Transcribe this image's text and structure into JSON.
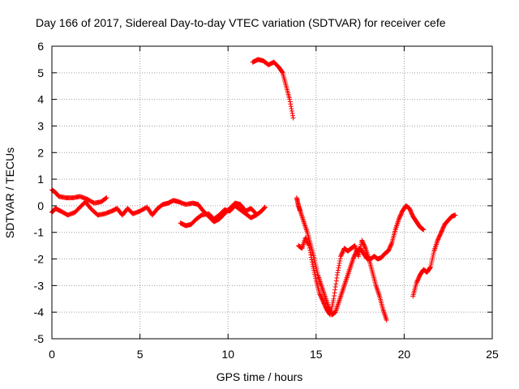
{
  "chart_data": {
    "type": "scatter",
    "title": "Day 166 of 2017, Sidereal Day-to-day VTEC variation (SDTVAR) for receiver cefe",
    "xlabel": "GPS time / hours",
    "ylabel": "SDTVAR / TECUs",
    "xlim": [
      0,
      25
    ],
    "ylim": [
      -5,
      6
    ],
    "xticks": [
      "0",
      "5",
      "10",
      "15",
      "20",
      "25"
    ],
    "yticks": [
      "-5",
      "-4",
      "-3",
      "-2",
      "-1",
      "0",
      "1",
      "2",
      "3",
      "4",
      "5",
      "6"
    ],
    "grid": true,
    "marker": "+",
    "color": "#ff0000",
    "segments": [
      [
        [
          0.0,
          0.6
        ],
        [
          0.2,
          0.5
        ],
        [
          0.4,
          0.35
        ],
        [
          0.8,
          0.3
        ],
        [
          1.2,
          0.3
        ],
        [
          1.6,
          0.35
        ],
        [
          2.0,
          0.25
        ],
        [
          2.4,
          0.1
        ],
        [
          2.8,
          0.15
        ],
        [
          3.1,
          0.3
        ]
      ],
      [
        [
          0.0,
          -0.25
        ],
        [
          0.2,
          -0.1
        ],
        [
          0.5,
          -0.2
        ],
        [
          0.9,
          -0.35
        ],
        [
          1.3,
          -0.25
        ],
        [
          1.6,
          -0.05
        ],
        [
          1.9,
          0.15
        ],
        [
          2.2,
          -0.1
        ],
        [
          2.6,
          -0.35
        ],
        [
          3.0,
          -0.3
        ],
        [
          3.4,
          -0.2
        ],
        [
          3.7,
          -0.1
        ],
        [
          4.0,
          -0.35
        ],
        [
          4.3,
          -0.1
        ],
        [
          4.6,
          -0.3
        ],
        [
          5.0,
          -0.2
        ],
        [
          5.4,
          -0.05
        ],
        [
          5.7,
          -0.35
        ],
        [
          6.0,
          -0.1
        ],
        [
          6.3,
          0.05
        ],
        [
          6.6,
          0.1
        ],
        [
          6.9,
          0.2
        ],
        [
          7.2,
          0.15
        ],
        [
          7.6,
          0.05
        ],
        [
          8.0,
          0.1
        ],
        [
          8.3,
          0.05
        ]
      ],
      [
        [
          7.3,
          -0.65
        ],
        [
          7.6,
          -0.75
        ],
        [
          7.9,
          -0.7
        ],
        [
          8.2,
          -0.5
        ],
        [
          8.5,
          -0.35
        ],
        [
          8.9,
          -0.3
        ],
        [
          9.2,
          -0.5
        ],
        [
          9.5,
          -0.35
        ],
        [
          9.8,
          -0.15
        ],
        [
          10.1,
          -0.2
        ],
        [
          10.4,
          0.0
        ],
        [
          10.7,
          -0.15
        ],
        [
          11.0,
          -0.3
        ],
        [
          11.3,
          -0.45
        ],
        [
          11.6,
          -0.35
        ],
        [
          11.9,
          -0.2
        ],
        [
          12.1,
          -0.05
        ]
      ],
      [
        [
          8.3,
          0.05
        ],
        [
          8.6,
          -0.2
        ],
        [
          8.9,
          -0.4
        ],
        [
          9.2,
          -0.6
        ],
        [
          9.5,
          -0.5
        ],
        [
          9.8,
          -0.3
        ],
        [
          10.1,
          -0.1
        ],
        [
          10.4,
          0.1
        ],
        [
          10.7,
          0.05
        ],
        [
          11.0,
          -0.2
        ],
        [
          11.3,
          -0.1
        ],
        [
          11.6,
          -0.3
        ]
      ],
      [
        [
          11.4,
          5.4
        ],
        [
          11.7,
          5.5
        ],
        [
          12.0,
          5.45
        ],
        [
          12.3,
          5.3
        ],
        [
          12.6,
          5.4
        ],
        [
          12.9,
          5.2
        ],
        [
          13.1,
          5.0
        ],
        [
          13.3,
          4.5
        ],
        [
          13.5,
          4.0
        ],
        [
          13.7,
          3.3
        ]
      ],
      [
        [
          13.9,
          0.3
        ],
        [
          14.0,
          0.0
        ],
        [
          14.1,
          -0.2
        ],
        [
          14.3,
          -0.6
        ],
        [
          14.5,
          -1.0
        ],
        [
          14.7,
          -1.5
        ],
        [
          14.9,
          -2.0
        ],
        [
          15.1,
          -2.6
        ],
        [
          15.3,
          -3.0
        ],
        [
          15.5,
          -3.4
        ],
        [
          15.7,
          -3.8
        ],
        [
          15.9,
          -4.1
        ],
        [
          16.1,
          -4.0
        ],
        [
          16.3,
          -3.6
        ],
        [
          16.5,
          -3.2
        ],
        [
          16.7,
          -2.8
        ],
        [
          16.9,
          -2.4
        ],
        [
          17.1,
          -2.0
        ],
        [
          17.3,
          -1.7
        ],
        [
          17.5,
          -1.6
        ],
        [
          17.7,
          -1.8
        ],
        [
          17.9,
          -2.0
        ],
        [
          18.1,
          -2.0
        ],
        [
          18.3,
          -1.9
        ],
        [
          18.5,
          -2.0
        ],
        [
          18.7,
          -1.95
        ],
        [
          18.9,
          -1.8
        ],
        [
          19.1,
          -1.7
        ],
        [
          19.3,
          -1.4
        ],
        [
          19.5,
          -0.9
        ],
        [
          19.7,
          -0.5
        ],
        [
          19.9,
          -0.2
        ],
        [
          20.1,
          0.0
        ],
        [
          20.3,
          -0.1
        ],
        [
          20.5,
          -0.4
        ],
        [
          20.7,
          -0.6
        ],
        [
          20.9,
          -0.8
        ],
        [
          21.1,
          -0.9
        ]
      ],
      [
        [
          14.0,
          -1.5
        ],
        [
          14.2,
          -1.6
        ],
        [
          14.4,
          -1.2
        ],
        [
          14.6,
          -1.5
        ],
        [
          14.8,
          -2.2
        ],
        [
          15.0,
          -2.8
        ],
        [
          15.2,
          -3.3
        ],
        [
          15.4,
          -3.6
        ],
        [
          15.6,
          -3.9
        ],
        [
          15.8,
          -4.1
        ],
        [
          16.0,
          -3.5
        ],
        [
          16.2,
          -2.6
        ],
        [
          16.4,
          -1.9
        ],
        [
          16.6,
          -1.6
        ],
        [
          16.8,
          -1.7
        ],
        [
          17.0,
          -1.6
        ],
        [
          17.2,
          -1.5
        ],
        [
          17.4,
          -1.9
        ],
        [
          17.6,
          -1.3
        ],
        [
          17.8,
          -1.6
        ],
        [
          18.0,
          -2.0
        ],
        [
          18.2,
          -2.5
        ],
        [
          18.4,
          -3.0
        ],
        [
          18.6,
          -3.4
        ],
        [
          18.8,
          -3.9
        ],
        [
          19.0,
          -4.3
        ]
      ],
      [
        [
          20.5,
          -3.4
        ],
        [
          20.7,
          -2.9
        ],
        [
          20.9,
          -2.6
        ],
        [
          21.1,
          -2.4
        ],
        [
          21.3,
          -2.5
        ],
        [
          21.5,
          -2.3
        ],
        [
          21.7,
          -1.7
        ],
        [
          21.9,
          -1.3
        ],
        [
          22.1,
          -1.0
        ],
        [
          22.3,
          -0.7
        ],
        [
          22.5,
          -0.55
        ],
        [
          22.7,
          -0.4
        ],
        [
          22.9,
          -0.35
        ]
      ]
    ]
  }
}
